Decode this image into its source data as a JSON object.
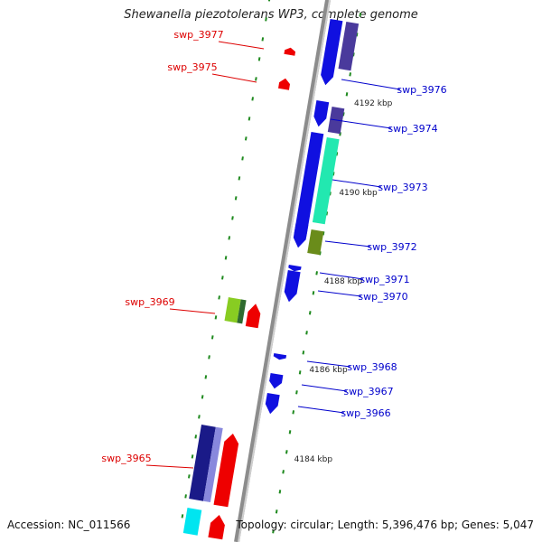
{
  "title": "Shewanella piezotolerans WP3, complete genome",
  "footer": {
    "accession": "Accession: NC_011566",
    "summary": "Topology: circular; Length: 5,396,476 bp; Genes: 5,047"
  },
  "colors": {
    "forward_label": "#dd0000",
    "reverse_label": "#0000cc",
    "tick": "#1f8a1f",
    "backbone": "#8c8c8c"
  },
  "position_labels": [
    "4192 kbp",
    "4190 kbp",
    "4188 kbp",
    "4186 kbp",
    "4184 kbp"
  ],
  "forward_genes": [
    "swp_3977",
    "swp_3975",
    "swp_3969",
    "swp_3965"
  ],
  "reverse_genes": [
    "swp_3976",
    "swp_3974",
    "swp_3973",
    "swp_3972",
    "swp_3971",
    "swp_3970",
    "swp_3968",
    "swp_3967",
    "swp_3966"
  ]
}
